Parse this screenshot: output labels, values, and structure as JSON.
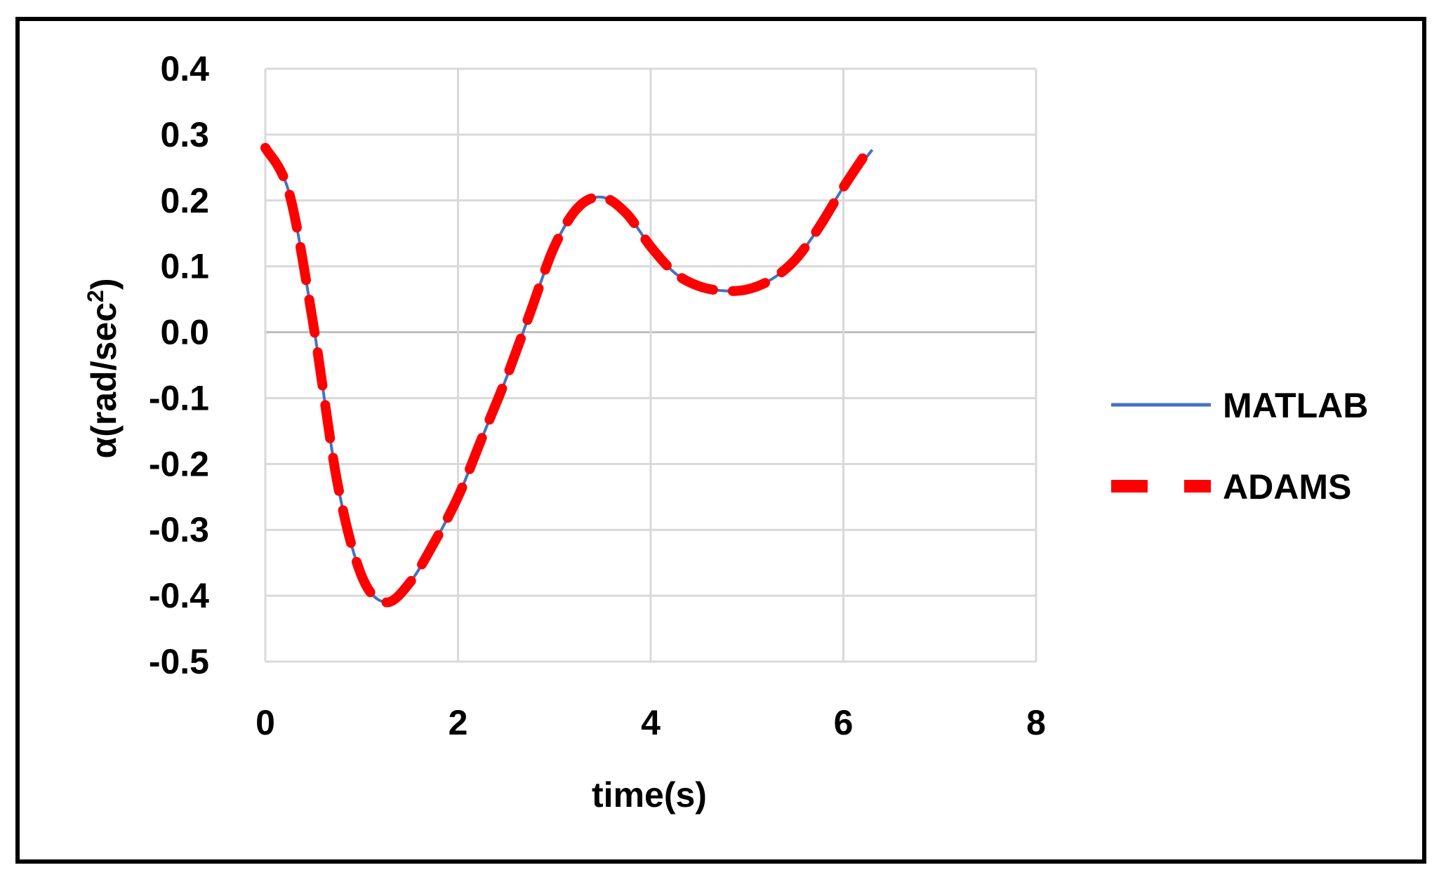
{
  "chart_data": {
    "type": "line",
    "xlabel": "time(s)",
    "ylabel_main": "α(rad/sec",
    "ylabel_sup": "2",
    "ylabel_close": ")",
    "xlim": [
      0,
      8
    ],
    "ylim": [
      -0.5,
      0.4
    ],
    "xticks": [
      "0",
      "2",
      "4",
      "6",
      "8"
    ],
    "xtick_values": [
      0,
      2,
      4,
      6,
      8
    ],
    "yticks": [
      "0.4",
      "0.3",
      "0.2",
      "0.1",
      "0.0",
      "-0.1",
      "-0.2",
      "-0.3",
      "-0.4",
      "-0.5"
    ],
    "ytick_values": [
      0.4,
      0.3,
      0.2,
      0.1,
      0.0,
      -0.1,
      -0.2,
      -0.3,
      -0.4,
      -0.5
    ],
    "grid": true,
    "legend_position": "right",
    "series": [
      {
        "name": "MATLAB",
        "color": "#4472C4",
        "style": "solid",
        "x": [
          0,
          0.25,
          0.5,
          0.75,
          1.0,
          1.25,
          1.5,
          1.75,
          2.0,
          2.25,
          2.5,
          2.75,
          3.0,
          3.25,
          3.5,
          3.75,
          4.0,
          4.25,
          4.5,
          4.75,
          5.0,
          5.25,
          5.5,
          5.75,
          6.0,
          6.3
        ],
        "y": [
          0.28,
          0.21,
          0.01,
          -0.23,
          -0.37,
          -0.41,
          -0.38,
          -0.32,
          -0.25,
          -0.16,
          -0.07,
          0.03,
          0.13,
          0.19,
          0.205,
          0.18,
          0.13,
          0.09,
          0.07,
          0.063,
          0.065,
          0.08,
          0.11,
          0.16,
          0.22,
          0.277
        ]
      },
      {
        "name": "ADAMS",
        "color": "#FF0000",
        "style": "dashed",
        "x": [
          0,
          0.25,
          0.5,
          0.75,
          1.0,
          1.25,
          1.5,
          1.75,
          2.0,
          2.25,
          2.5,
          2.75,
          3.0,
          3.25,
          3.5,
          3.75,
          4.0,
          4.25,
          4.5,
          4.75,
          5.0,
          5.25,
          5.5,
          5.75,
          6.0,
          6.25
        ],
        "y": [
          0.28,
          0.21,
          0.01,
          -0.23,
          -0.37,
          -0.41,
          -0.38,
          -0.32,
          -0.25,
          -0.16,
          -0.07,
          0.03,
          0.13,
          0.19,
          0.205,
          0.18,
          0.13,
          0.09,
          0.07,
          0.063,
          0.065,
          0.08,
          0.11,
          0.16,
          0.22,
          0.275
        ]
      }
    ]
  }
}
